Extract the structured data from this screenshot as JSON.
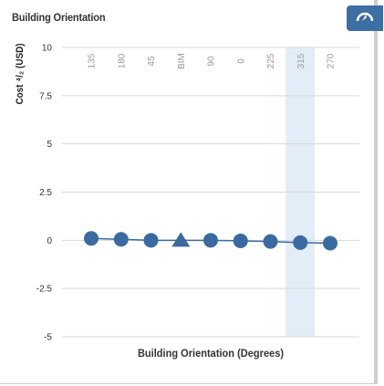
{
  "panel": {
    "title": "Building Orientation"
  },
  "icons": {
    "corner": "compass-icon"
  },
  "chart_data": {
    "type": "line",
    "xlabel": "Building Orientation (Degrees)",
    "ylabel": "Cost ⁴/₂ (USD)",
    "ylim": [
      -5,
      10
    ],
    "yticks": [
      "10",
      "7.5",
      "5",
      "2.5",
      "0",
      "-2.5",
      "-5"
    ],
    "categories": [
      "135",
      "180",
      "45",
      "BIM",
      "90",
      "0",
      "225",
      "315",
      "270"
    ],
    "highlighted_category": "315",
    "series": [
      {
        "values": [
          0.1,
          0.05,
          0.0,
          0.0,
          0.0,
          -0.03,
          -0.06,
          -0.12,
          -0.15
        ],
        "markers": [
          "circle",
          "circle",
          "circle",
          "triangle",
          "circle",
          "circle",
          "circle",
          "circle",
          "circle"
        ]
      }
    ],
    "colors": {
      "series": "#3b6aa0",
      "highlight": "#e3edf8",
      "grid": "#d9d9d9"
    },
    "grid": true,
    "legend": "none"
  }
}
